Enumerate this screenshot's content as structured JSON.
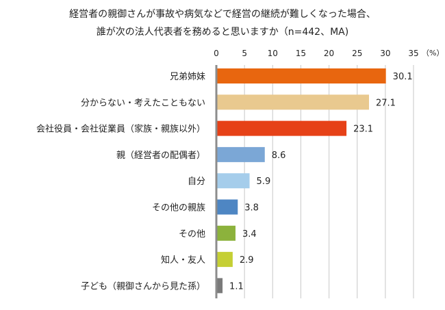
{
  "chart_data": {
    "type": "bar",
    "orientation": "horizontal",
    "title_lines": [
      "経営者の親御さんが事故や病気などで経営の継続が難しくなった場合、",
      "誰が次の法人代表者を務めると思いますか（n=442、MA)"
    ],
    "unit_label": "（%）",
    "xlim": [
      0,
      35
    ],
    "ticks": [
      0,
      5,
      10,
      15,
      20,
      25,
      30,
      35
    ],
    "grid": true,
    "categories": [
      "兄弟姉妹",
      "分からない・考えたこともない",
      "会社役員・会社従業員（家族・親族以外）",
      "親（経営者の配偶者）",
      "自分",
      "その他の親族",
      "その他",
      "知人・友人",
      "子ども（親御さんから見た孫）"
    ],
    "values": [
      30.1,
      27.1,
      23.1,
      8.6,
      5.9,
      3.8,
      3.4,
      2.9,
      1.1
    ],
    "value_labels": [
      "30.1",
      "27.1",
      "23.1",
      "8.6",
      "5.9",
      "3.8",
      "3.4",
      "2.9",
      "1.1"
    ],
    "colors": [
      "#E8660F",
      "#E9C98F",
      "#E64117",
      "#7BA7D6",
      "#A5CDEB",
      "#4E86C3",
      "#8CB23C",
      "#C5CF34",
      "#7A7A7A"
    ]
  }
}
